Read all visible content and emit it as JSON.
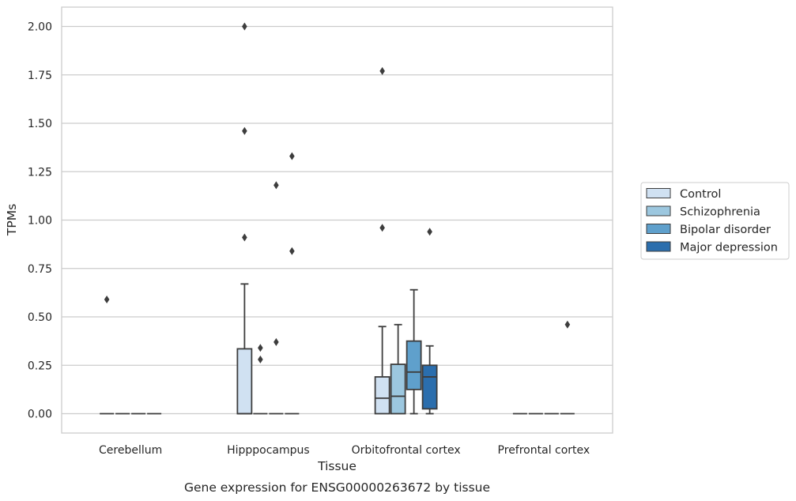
{
  "chart_data": {
    "type": "box",
    "xlabel": "Tissue",
    "ylabel": "TPMs",
    "caption": "Gene expression for ENSG00000263672 by tissue",
    "ylim": [
      -0.1,
      2.1
    ],
    "yticks": [
      "0.00",
      "0.25",
      "0.50",
      "0.75",
      "1.00",
      "1.25",
      "1.50",
      "1.75",
      "2.00"
    ],
    "grid": true,
    "legend_position": "right",
    "categories": [
      "Cerebellum",
      "Hipppocampus",
      "Orbitofrontal cortex",
      "Prefrontal cortex"
    ],
    "series": [
      {
        "name": "Control",
        "color": "#d0e1f2",
        "boxes": [
          {
            "category": "Cerebellum",
            "q1": 0,
            "median": 0,
            "q3": 0,
            "whislo": 0,
            "whishi": 0,
            "fliers": [
              0.59
            ]
          },
          {
            "category": "Hipppocampus",
            "q1": 0,
            "median": 0,
            "q3": 0.335,
            "whislo": 0,
            "whishi": 0.67,
            "fliers": [
              0.91,
              1.46,
              2.0
            ]
          },
          {
            "category": "Orbitofrontal cortex",
            "q1": 0,
            "median": 0.08,
            "q3": 0.19,
            "whislo": 0,
            "whishi": 0.45,
            "fliers": [
              0.96,
              1.77
            ]
          },
          {
            "category": "Prefrontal cortex",
            "q1": 0,
            "median": 0,
            "q3": 0,
            "whislo": 0,
            "whishi": 0,
            "fliers": []
          }
        ]
      },
      {
        "name": "Schizophrenia",
        "color": "#9cc7df",
        "boxes": [
          {
            "category": "Cerebellum",
            "q1": 0,
            "median": 0,
            "q3": 0,
            "whislo": 0,
            "whishi": 0,
            "fliers": []
          },
          {
            "category": "Hipppocampus",
            "q1": 0,
            "median": 0,
            "q3": 0,
            "whislo": 0,
            "whishi": 0,
            "fliers": [
              0.28,
              0.34
            ]
          },
          {
            "category": "Orbitofrontal cortex",
            "q1": 0,
            "median": 0.09,
            "q3": 0.255,
            "whislo": 0,
            "whishi": 0.46,
            "fliers": []
          },
          {
            "category": "Prefrontal cortex",
            "q1": 0,
            "median": 0,
            "q3": 0,
            "whislo": 0,
            "whishi": 0,
            "fliers": []
          }
        ]
      },
      {
        "name": "Bipolar disorder",
        "color": "#5fa0cc",
        "boxes": [
          {
            "category": "Cerebellum",
            "q1": 0,
            "median": 0,
            "q3": 0,
            "whislo": 0,
            "whishi": 0,
            "fliers": []
          },
          {
            "category": "Hipppocampus",
            "q1": 0,
            "median": 0,
            "q3": 0,
            "whislo": 0,
            "whishi": 0,
            "fliers": [
              0.37,
              1.18
            ]
          },
          {
            "category": "Orbitofrontal cortex",
            "q1": 0.125,
            "median": 0.215,
            "q3": 0.375,
            "whislo": 0,
            "whishi": 0.64,
            "fliers": []
          },
          {
            "category": "Prefrontal cortex",
            "q1": 0,
            "median": 0,
            "q3": 0,
            "whislo": 0,
            "whishi": 0,
            "fliers": []
          }
        ]
      },
      {
        "name": "Major depression",
        "color": "#2b6ead",
        "boxes": [
          {
            "category": "Cerebellum",
            "q1": 0,
            "median": 0,
            "q3": 0,
            "whislo": 0,
            "whishi": 0,
            "fliers": []
          },
          {
            "category": "Hipppocampus",
            "q1": 0,
            "median": 0,
            "q3": 0,
            "whislo": 0,
            "whishi": 0,
            "fliers": [
              0.84,
              1.33
            ]
          },
          {
            "category": "Orbitofrontal cortex",
            "q1": 0.025,
            "median": 0.19,
            "q3": 0.25,
            "whislo": 0,
            "whishi": 0.35,
            "fliers": [
              0.94
            ]
          },
          {
            "category": "Prefrontal cortex",
            "q1": 0,
            "median": 0,
            "q3": 0,
            "whislo": 0,
            "whishi": 0,
            "fliers": [
              0.46
            ]
          }
        ]
      }
    ]
  }
}
